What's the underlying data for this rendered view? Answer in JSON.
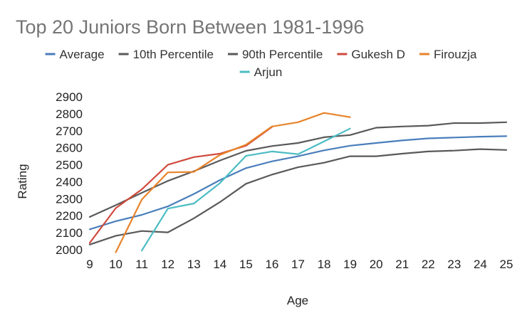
{
  "chart_data": {
    "type": "line",
    "title": "Top 20 Juniors Born Between 1981-1996",
    "xlabel": "Age",
    "ylabel": "Rating",
    "x": [
      9,
      10,
      11,
      12,
      13,
      14,
      15,
      16,
      17,
      18,
      19,
      20,
      21,
      22,
      23,
      24,
      25
    ],
    "xlim": [
      9,
      25
    ],
    "ylim": [
      2000,
      2900
    ],
    "y_ticks": [
      2000,
      2100,
      2200,
      2300,
      2400,
      2500,
      2600,
      2700,
      2800,
      2900
    ],
    "grid": false,
    "legend_position": "top",
    "series": [
      {
        "name": "Average",
        "color": "#4a7ebb",
        "values": [
          2120,
          2168,
          2205,
          2255,
          2328,
          2410,
          2480,
          2520,
          2550,
          2585,
          2612,
          2628,
          2643,
          2655,
          2660,
          2665,
          2668
        ]
      },
      {
        "name": "10th Percentile",
        "color": "#595959",
        "values": [
          2030,
          2082,
          2110,
          2102,
          2185,
          2280,
          2388,
          2442,
          2485,
          2512,
          2550,
          2550,
          2565,
          2578,
          2583,
          2592,
          2587
        ]
      },
      {
        "name": "90th Percentile",
        "color": "#595959",
        "values": [
          2193,
          2262,
          2335,
          2405,
          2462,
          2525,
          2582,
          2610,
          2628,
          2662,
          2675,
          2718,
          2725,
          2730,
          2745,
          2745,
          2750
        ]
      },
      {
        "name": "Gukesh D",
        "color": "#d04a3d",
        "values": [
          2040,
          2245,
          2355,
          2500,
          2545,
          2565,
          2612,
          2722,
          null,
          null,
          null,
          null,
          null,
          null,
          null,
          null,
          null
        ]
      },
      {
        "name": "Firouzja",
        "color": "#e8832a",
        "values": [
          null,
          1985,
          2295,
          2455,
          2458,
          2558,
          2618,
          2725,
          2750,
          2805,
          2780,
          null,
          null,
          null,
          null,
          null,
          null
        ]
      },
      {
        "name": "Arjun",
        "color": "#4bbcc4",
        "values": [
          null,
          null,
          1995,
          2242,
          2272,
          2392,
          2552,
          2578,
          2562,
          2637,
          2713,
          null,
          null,
          null,
          null,
          null,
          null
        ]
      }
    ]
  }
}
